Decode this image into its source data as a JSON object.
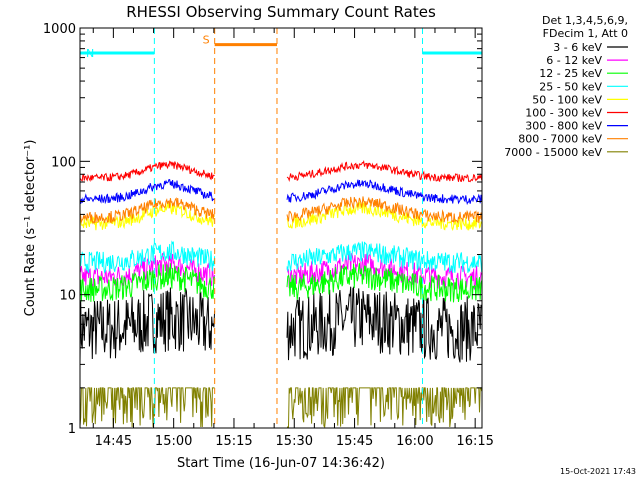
{
  "chart_data": {
    "type": "line",
    "title": "RHESSI Observing Summary Count Rates",
    "xlabel": "Start Time (16-Jun-07 14:36:42)",
    "ylabel": "Count Rate (s⁻¹ detector⁻¹)",
    "y_scale": "log",
    "ylim": [
      1,
      1000
    ],
    "xlim_min": [
      0,
      100
    ],
    "x_ticks": [
      {
        "m": 8.3,
        "label": "14:45"
      },
      {
        "m": 23.3,
        "label": "15:00"
      },
      {
        "m": 38.3,
        "label": "15:15"
      },
      {
        "m": 53.3,
        "label": "15:30"
      },
      {
        "m": 68.3,
        "label": "15:45"
      },
      {
        "m": 83.3,
        "label": "16:00"
      },
      {
        "m": 98.3,
        "label": "16:15"
      }
    ],
    "y_ticks": [
      {
        "v": 1,
        "label": "1"
      },
      {
        "v": 10,
        "label": "10"
      },
      {
        "v": 100,
        "label": "100"
      },
      {
        "v": 1000,
        "label": "1000"
      }
    ],
    "legend_header": [
      "Det 1,3,4,5,6,9,",
      "FDecim 1, Att 0"
    ],
    "segments": [
      [
        0,
        33.5
      ],
      [
        51.5,
        100
      ]
    ],
    "series": [
      {
        "name": "3 - 6 keV",
        "color": "#000000",
        "base": 5.5,
        "bump": 1.2,
        "noise": 0.25
      },
      {
        "name": "6 - 12 keV",
        "color": "#ff00ff",
        "base": 13.5,
        "bump": 1.25,
        "noise": 0.09
      },
      {
        "name": "12 - 25 keV",
        "color": "#00ff00",
        "base": 11,
        "bump": 1.25,
        "noise": 0.1
      },
      {
        "name": "25 - 50 keV",
        "color": "#00ffff",
        "base": 17.5,
        "bump": 1.2,
        "noise": 0.08
      },
      {
        "name": "50 - 100 keV",
        "color": "#ffff00",
        "base": 34,
        "bump": 1.3,
        "noise": 0.05
      },
      {
        "name": "100 - 300 keV",
        "color": "#ff0000",
        "base": 75,
        "bump": 1.25,
        "noise": 0.03
      },
      {
        "name": "300 - 800 keV",
        "color": "#0000ff",
        "base": 52,
        "bump": 1.3,
        "noise": 0.035
      },
      {
        "name": "800 - 7000 keV",
        "color": "#ff8000",
        "base": 38,
        "bump": 1.3,
        "noise": 0.045
      },
      {
        "name": "7000 - 15000 keV",
        "color": "#808000",
        "base": 1.6,
        "bump": 1.0,
        "noise": 0.3
      }
    ],
    "flags": [
      {
        "label": "N",
        "color": "#00ffff",
        "start": 0,
        "end": 18.5,
        "level": 650,
        "line_color": "#00ffff"
      },
      {
        "label": "",
        "color": "#00ffff",
        "start": 85.2,
        "end": 100,
        "level": 650,
        "line_color": "#00ffff"
      },
      {
        "label": "S",
        "color": "#ff8000",
        "start": 33.5,
        "end": 49,
        "level": 750,
        "line_color": "#ff8000"
      }
    ],
    "timestamp": "15-Oct-2021 17:43"
  }
}
